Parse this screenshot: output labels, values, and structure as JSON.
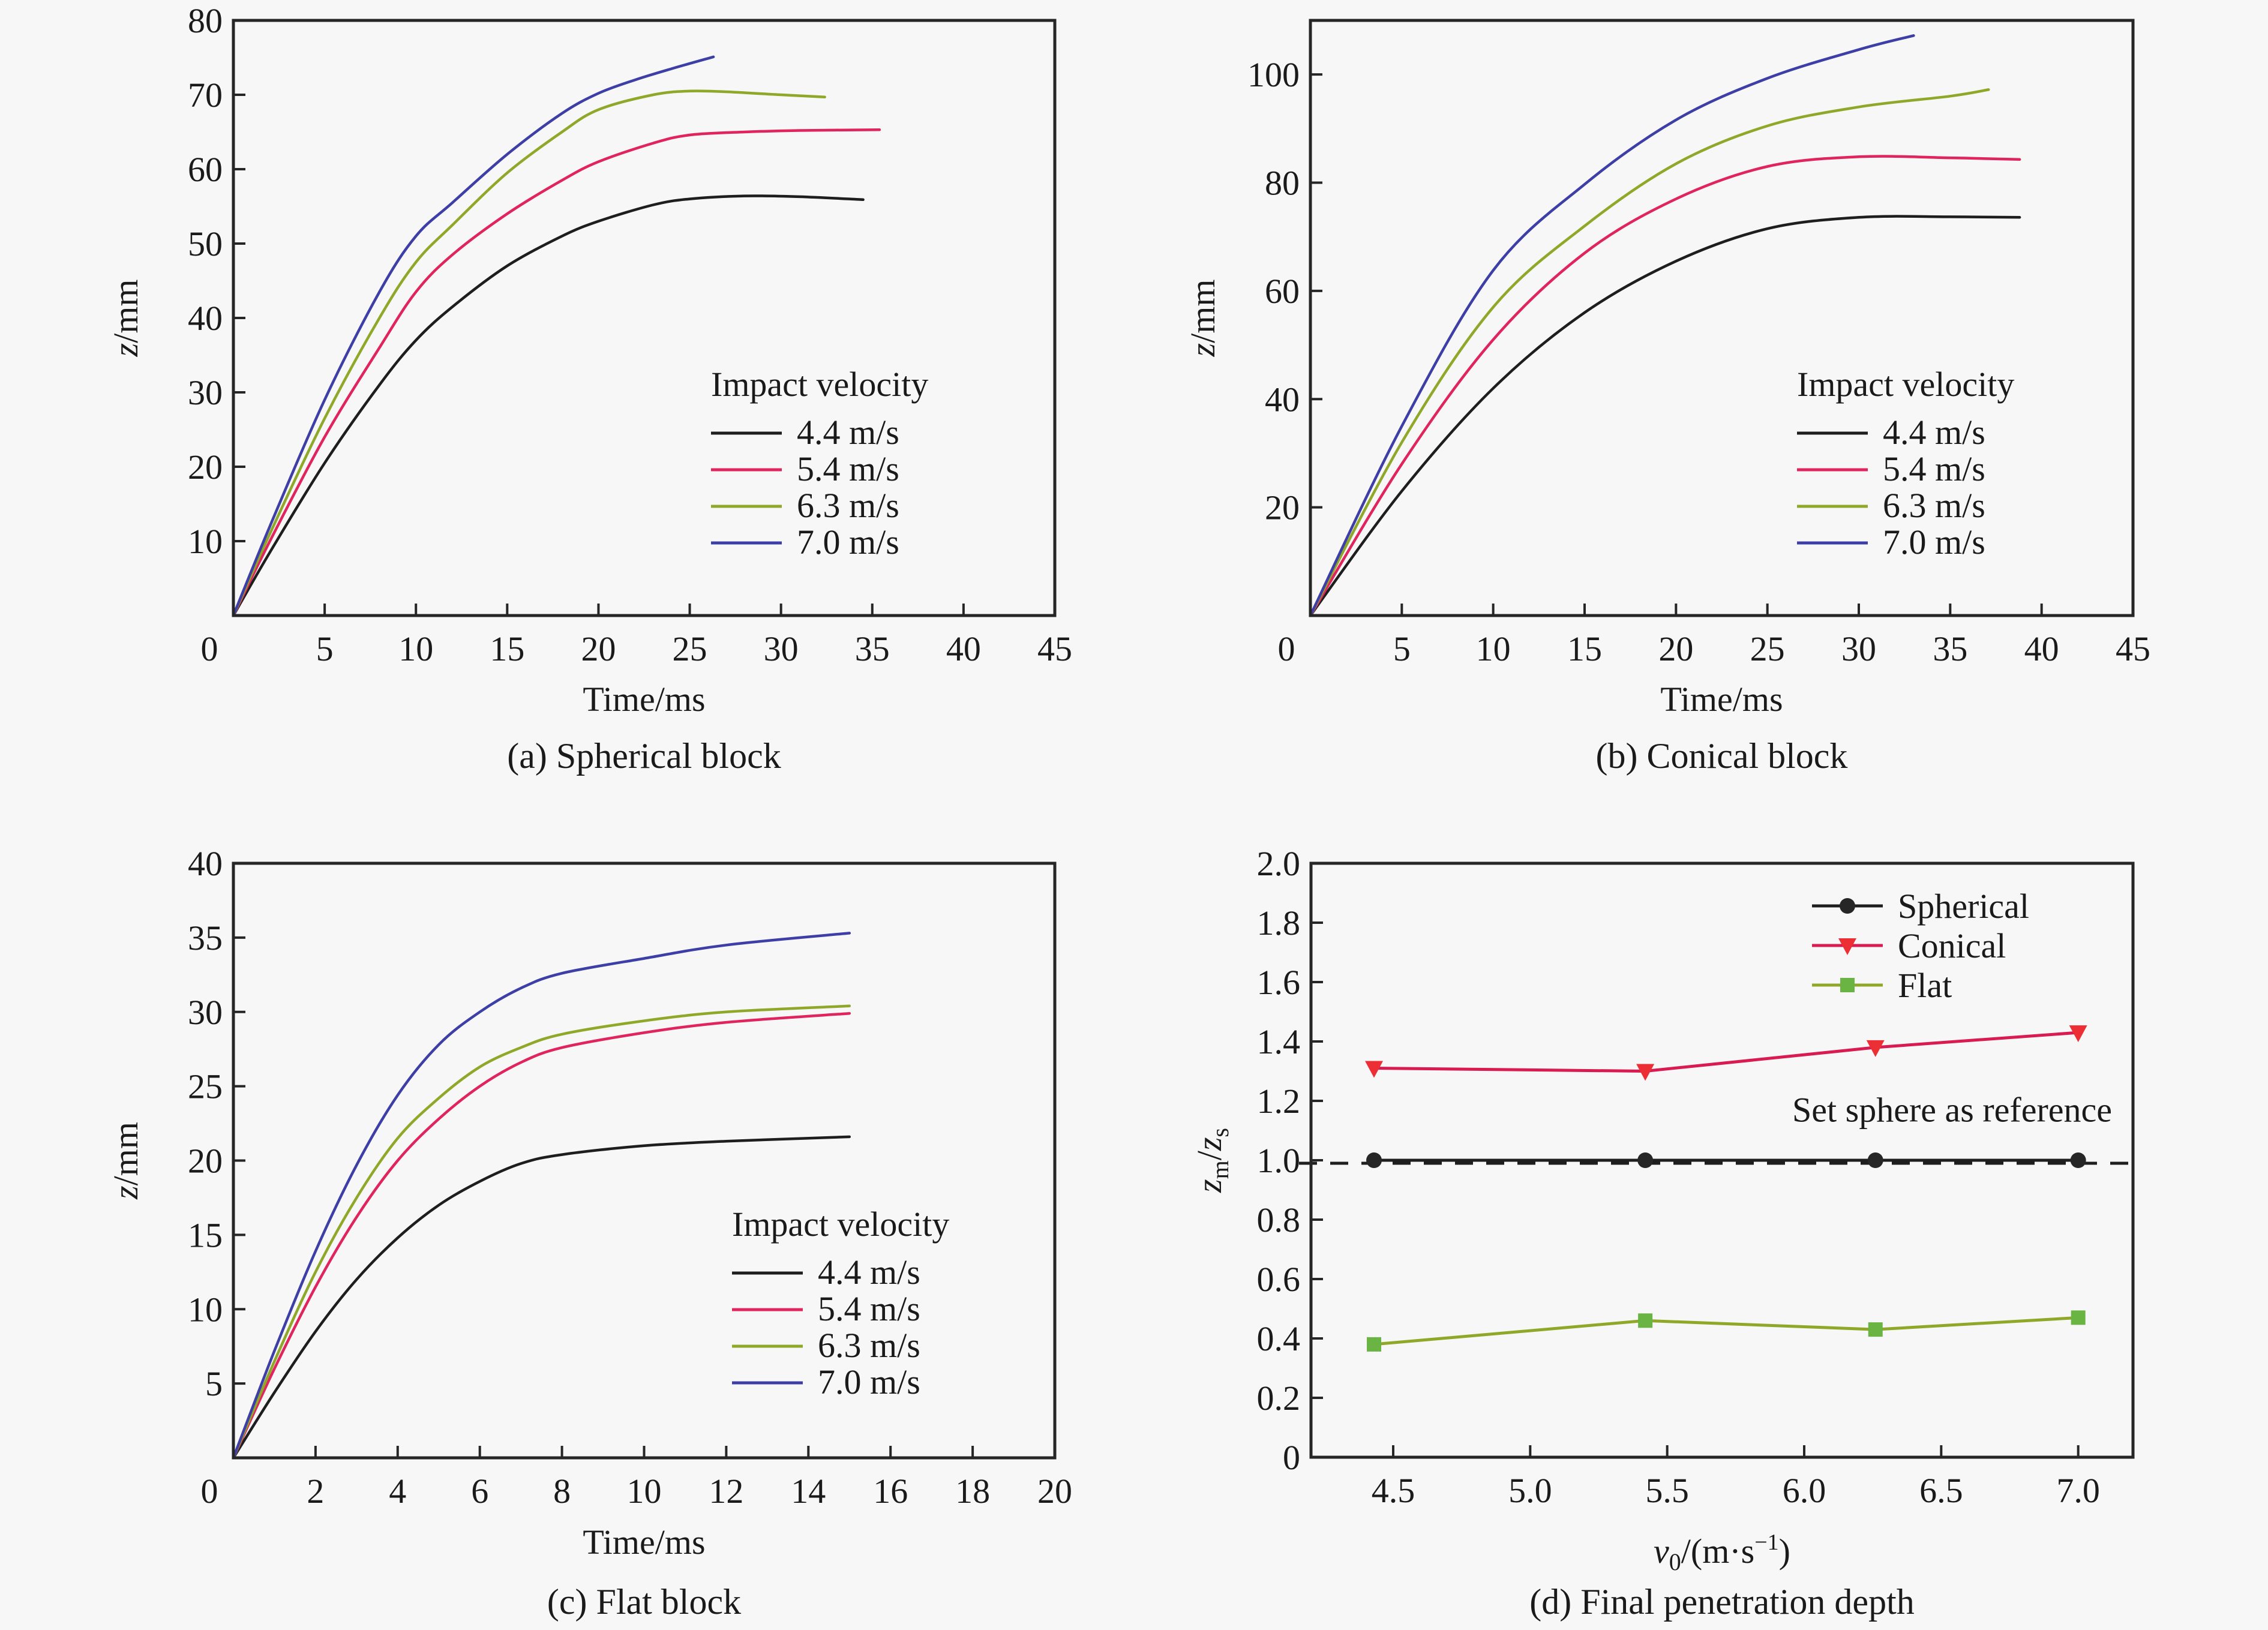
{
  "chart_data": [
    {
      "id": "a",
      "type": "line",
      "caption": "(a) Spherical block",
      "xlabel": "Time/ms",
      "ylabel_italic": "z",
      "ylabel_rest": "/mm",
      "xlim": [
        0,
        45
      ],
      "ylim": [
        0,
        80
      ],
      "xticks": [
        0,
        5,
        10,
        15,
        20,
        25,
        30,
        35,
        40,
        45
      ],
      "yticks": [
        10,
        20,
        30,
        40,
        50,
        60,
        70,
        80
      ],
      "legend_title": "Impact velocity",
      "legend_position": "center-right",
      "series": [
        {
          "name": "4.4 m/s",
          "color": "#1e1e1e",
          "x": [
            0,
            2,
            5,
            8,
            10,
            12,
            15,
            18,
            20,
            23,
            25,
            28,
            31,
            34.5
          ],
          "y": [
            0,
            8.5,
            20.5,
            31,
            37,
            41.5,
            47,
            51,
            53,
            55.2,
            56,
            56.4,
            56.3,
            55.9
          ]
        },
        {
          "name": "5.4 m/s",
          "color": "#e0245e",
          "x": [
            0,
            2,
            5,
            8,
            10,
            12,
            15,
            18,
            20,
            23,
            25,
            28,
            31,
            35.4
          ],
          "y": [
            0,
            10,
            24,
            36,
            43.5,
            48.5,
            54,
            58.5,
            61,
            63.5,
            64.6,
            65,
            65.2,
            65.3
          ]
        },
        {
          "name": "6.3 m/s",
          "color": "#8fa82a",
          "x": [
            0,
            2,
            5,
            8,
            10,
            12,
            15,
            18,
            20,
            23,
            25,
            27,
            30,
            32.4
          ],
          "y": [
            0,
            11,
            26.5,
            40,
            47.5,
            52.5,
            59.5,
            65,
            68,
            70,
            70.5,
            70.4,
            70,
            69.7
          ]
        },
        {
          "name": "7.0 m/s",
          "color": "#3d3fa6",
          "x": [
            0,
            2,
            5,
            8,
            10,
            12,
            15,
            18,
            20,
            22,
            24,
            26.3
          ],
          "y": [
            0,
            12,
            29,
            43.5,
            51,
            55.5,
            62,
            67.5,
            70.2,
            72,
            73.5,
            75.1
          ]
        }
      ]
    },
    {
      "id": "b",
      "type": "line",
      "caption": "(b) Conical block",
      "xlabel": "Time/ms",
      "ylabel_italic": "z",
      "ylabel_rest": "/mm",
      "xlim": [
        0,
        45
      ],
      "ylim": [
        0,
        110
      ],
      "xticks": [
        0,
        5,
        10,
        15,
        20,
        25,
        30,
        35,
        40,
        45
      ],
      "yticks": [
        20,
        40,
        60,
        80,
        100
      ],
      "legend_title": "Impact velocity",
      "legend_position": "center-right",
      "series": [
        {
          "name": "4.4 m/s",
          "color": "#1e1e1e",
          "x": [
            0,
            5,
            10,
            15,
            20,
            25,
            30,
            35,
            38.8
          ],
          "y": [
            0,
            23,
            42,
            56,
            65.5,
            71.5,
            73.6,
            73.7,
            73.6
          ]
        },
        {
          "name": "5.4 m/s",
          "color": "#e0245e",
          "x": [
            0,
            5,
            10,
            15,
            20,
            25,
            30,
            35,
            38.8
          ],
          "y": [
            0,
            28,
            51,
            67,
            77,
            83,
            84.8,
            84.6,
            84.3
          ]
        },
        {
          "name": "6.3 m/s",
          "color": "#8fa82a",
          "x": [
            0,
            5,
            10,
            15,
            20,
            25,
            30,
            35,
            37.1
          ],
          "y": [
            0,
            32,
            57,
            72,
            83.5,
            90.5,
            94,
            96,
            97.2
          ]
        },
        {
          "name": "7.0 m/s",
          "color": "#3d3fa6",
          "x": [
            0,
            5,
            10,
            15,
            20,
            25,
            30,
            33
          ],
          "y": [
            0,
            35,
            63.8,
            79.7,
            91.6,
            99.3,
            104.6,
            107.2
          ]
        }
      ]
    },
    {
      "id": "c",
      "type": "line",
      "caption": "(c) Flat block",
      "xlabel": "Time/ms",
      "ylabel_italic": "z",
      "ylabel_rest": "/mm",
      "xlim": [
        0,
        20
      ],
      "ylim": [
        0,
        40
      ],
      "xticks": [
        0,
        2,
        4,
        6,
        8,
        10,
        12,
        14,
        16,
        18,
        20
      ],
      "yticks": [
        5,
        10,
        15,
        20,
        25,
        30,
        35,
        40
      ],
      "legend_title": "Impact velocity",
      "legend_position": "lower-right",
      "series": [
        {
          "name": "4.4 m/s",
          "color": "#1e1e1e",
          "x": [
            0,
            1,
            2,
            3,
            4,
            5,
            6,
            7,
            8,
            10,
            12,
            15
          ],
          "y": [
            0,
            4.4,
            8.5,
            12,
            14.8,
            17,
            18.6,
            19.8,
            20.4,
            21,
            21.3,
            21.6
          ]
        },
        {
          "name": "5.4 m/s",
          "color": "#e0245e",
          "x": [
            0,
            1,
            2,
            3,
            4,
            5,
            6,
            7,
            8,
            10,
            12,
            15
          ],
          "y": [
            0,
            6,
            11.5,
            16.2,
            20,
            22.8,
            25,
            26.6,
            27.6,
            28.6,
            29.3,
            29.9
          ]
        },
        {
          "name": "6.3 m/s",
          "color": "#8fa82a",
          "x": [
            0,
            1,
            2,
            3,
            4,
            5,
            6,
            7,
            8,
            10,
            12,
            15
          ],
          "y": [
            0,
            6.5,
            12.5,
            17.5,
            21.5,
            24.2,
            26.3,
            27.6,
            28.5,
            29.4,
            30,
            30.4
          ]
        },
        {
          "name": "7.0 m/s",
          "color": "#3d3fa6",
          "x": [
            0,
            1,
            2,
            3,
            4,
            5,
            6,
            7,
            8,
            10,
            12,
            15
          ],
          "y": [
            0,
            7.2,
            13.9,
            19.7,
            24.4,
            27.8,
            30,
            31.6,
            32.6,
            33.6,
            34.5,
            35.3
          ]
        }
      ]
    },
    {
      "id": "d",
      "type": "line",
      "caption": "(d) Final penetration depth",
      "xlabel_italic": "v",
      "xlabel_sub": "0",
      "xlabel_rest": "/(m·s",
      "xlabel_sup": "−1",
      "xlabel_close": ")",
      "ylabel_a": "z",
      "ylabel_a_sub": "m",
      "ylabel_b": "z",
      "ylabel_b_sub": "s",
      "xlim": [
        4.2,
        7.2
      ],
      "ylim": [
        0,
        2.0
      ],
      "xticks": [
        "4.5",
        "5.0",
        "5.5",
        "6.0",
        "6.5",
        "7.0"
      ],
      "yticks": [
        "0",
        "0.2",
        "0.4",
        "0.6",
        "0.8",
        "1.0",
        "1.2",
        "1.4",
        "1.6",
        "1.8",
        "2.0"
      ],
      "legend_position": "top-right",
      "reference_line": {
        "y": 0.99,
        "style": "dashed",
        "color": "#1e1e1e"
      },
      "annotation": "Set sphere as reference",
      "series": [
        {
          "name": "Spherical",
          "color": "#1e1e1e",
          "marker": "circle",
          "marker_color": "#262626",
          "x": [
            4.43,
            5.42,
            6.26,
            7.0
          ],
          "y": [
            1.0,
            1.0,
            1.0,
            1.0
          ]
        },
        {
          "name": "Conical",
          "color": "#d81b50",
          "marker": "triangle-down",
          "marker_color": "#ec2f35",
          "x": [
            4.43,
            5.42,
            6.26,
            7.0
          ],
          "y": [
            1.31,
            1.3,
            1.38,
            1.43
          ]
        },
        {
          "name": "Flat",
          "color": "#8fa82a",
          "marker": "square",
          "marker_color": "#6ab443",
          "x": [
            4.43,
            5.42,
            6.26,
            7.0
          ],
          "y": [
            0.38,
            0.46,
            0.43,
            0.47
          ]
        }
      ]
    }
  ]
}
